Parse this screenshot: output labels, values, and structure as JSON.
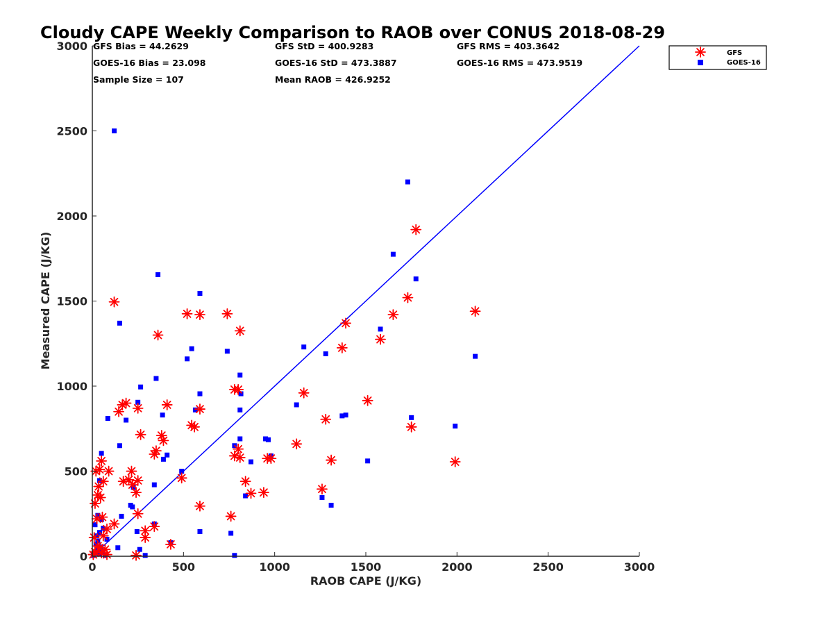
{
  "chart_data": {
    "type": "scatter",
    "title": "Cloudy CAPE Weekly Comparison to RAOB over CONUS 2018-08-29",
    "xlabel": "RAOB CAPE (J/KG)",
    "ylabel": "Measured CAPE (J/KG)",
    "xlim": [
      0,
      3000
    ],
    "ylim": [
      0,
      3000
    ],
    "xticks": [
      "0",
      "500",
      "1000",
      "1500",
      "2000",
      "2500",
      "3000"
    ],
    "yticks": [
      "0",
      "500",
      "1000",
      "1500",
      "2000",
      "2500",
      "3000"
    ],
    "grid": false,
    "legend_position": "top-right",
    "stats": {
      "gfs_bias": "GFS Bias = 44.2629",
      "gfs_std": "GFS StD = 400.9283",
      "gfs_rms": "GFS RMS = 403.3642",
      "goes_bias": "GOES-16 Bias = 23.098",
      "goes_std": "GOES-16 StD = 473.3887",
      "goes_rms": "GOES-16 RMS = 473.9519",
      "sample_size": "Sample Size = 107",
      "mean_raob": "Mean RAOB = 426.9252"
    },
    "reference_line": {
      "x": [
        0,
        3000
      ],
      "y": [
        0,
        3000
      ],
      "color": "#0000ff"
    },
    "series": [
      {
        "name": "GFS",
        "marker": "asterisk",
        "color": "#ff0000",
        "points": [
          [
            120,
            1495
          ],
          [
            165,
            890
          ],
          [
            145,
            850
          ],
          [
            185,
            900
          ],
          [
            250,
            870
          ],
          [
            360,
            1300
          ],
          [
            410,
            890
          ],
          [
            520,
            1425
          ],
          [
            590,
            1420
          ],
          [
            740,
            1425
          ],
          [
            810,
            1325
          ],
          [
            800,
            980
          ],
          [
            780,
            980
          ],
          [
            545,
            770
          ],
          [
            560,
            760
          ],
          [
            590,
            865
          ],
          [
            380,
            710
          ],
          [
            390,
            680
          ],
          [
            265,
            715
          ],
          [
            340,
            600
          ],
          [
            350,
            620
          ],
          [
            490,
            460
          ],
          [
            430,
            70
          ],
          [
            590,
            295
          ],
          [
            760,
            235
          ],
          [
            780,
            590
          ],
          [
            800,
            630
          ],
          [
            810,
            580
          ],
          [
            840,
            440
          ],
          [
            870,
            370
          ],
          [
            940,
            375
          ],
          [
            960,
            575
          ],
          [
            980,
            575
          ],
          [
            1160,
            960
          ],
          [
            1120,
            660
          ],
          [
            1280,
            805
          ],
          [
            1310,
            565
          ],
          [
            1260,
            395
          ],
          [
            1370,
            1225
          ],
          [
            1390,
            1370
          ],
          [
            1510,
            915
          ],
          [
            1580,
            1275
          ],
          [
            1650,
            1420
          ],
          [
            1730,
            1520
          ],
          [
            1775,
            1920
          ],
          [
            1750,
            760
          ],
          [
            1990,
            555
          ],
          [
            2100,
            1440
          ],
          [
            20,
            500
          ],
          [
            40,
            510
          ],
          [
            50,
            560
          ],
          [
            90,
            500
          ],
          [
            60,
            440
          ],
          [
            30,
            360
          ],
          [
            45,
            345
          ],
          [
            55,
            230
          ],
          [
            25,
            220
          ],
          [
            15,
            310
          ],
          [
            35,
            410
          ],
          [
            60,
            120
          ],
          [
            80,
            160
          ],
          [
            120,
            190
          ],
          [
            170,
            440
          ],
          [
            200,
            450
          ],
          [
            215,
            500
          ],
          [
            250,
            445
          ],
          [
            240,
            375
          ],
          [
            250,
            250
          ],
          [
            290,
            150
          ],
          [
            290,
            110
          ],
          [
            340,
            175
          ],
          [
            30,
            60
          ],
          [
            15,
            25
          ],
          [
            5,
            10
          ],
          [
            50,
            20
          ],
          [
            70,
            40
          ],
          [
            80,
            10
          ],
          [
            10,
            110
          ],
          [
            40,
            50
          ],
          [
            240,
            5
          ],
          [
            220,
            420
          ]
        ]
      },
      {
        "name": "GOES-16",
        "marker": "square",
        "color": "#0000ff",
        "points": [
          [
            120,
            2500
          ],
          [
            1730,
            2200
          ],
          [
            1650,
            1775
          ],
          [
            1775,
            1630
          ],
          [
            360,
            1655
          ],
          [
            590,
            1545
          ],
          [
            150,
            1370
          ],
          [
            545,
            1220
          ],
          [
            520,
            1160
          ],
          [
            740,
            1205
          ],
          [
            810,
            1065
          ],
          [
            815,
            955
          ],
          [
            590,
            955
          ],
          [
            350,
            1045
          ],
          [
            265,
            995
          ],
          [
            250,
            905
          ],
          [
            385,
            830
          ],
          [
            565,
            860
          ],
          [
            810,
            860
          ],
          [
            1160,
            1230
          ],
          [
            1280,
            1190
          ],
          [
            1120,
            890
          ],
          [
            1370,
            825
          ],
          [
            1390,
            830
          ],
          [
            1580,
            1335
          ],
          [
            2100,
            1175
          ],
          [
            1750,
            815
          ],
          [
            1990,
            765
          ],
          [
            1510,
            560
          ],
          [
            1260,
            345
          ],
          [
            1310,
            300
          ],
          [
            950,
            690
          ],
          [
            965,
            685
          ],
          [
            980,
            590
          ],
          [
            870,
            555
          ],
          [
            840,
            355
          ],
          [
            810,
            690
          ],
          [
            780,
            650
          ],
          [
            760,
            135
          ],
          [
            780,
            5
          ],
          [
            590,
            145
          ],
          [
            490,
            500
          ],
          [
            410,
            595
          ],
          [
            390,
            570
          ],
          [
            340,
            420
          ],
          [
            340,
            190
          ],
          [
            430,
            80
          ],
          [
            210,
            300
          ],
          [
            220,
            290
          ],
          [
            225,
            405
          ],
          [
            245,
            145
          ],
          [
            260,
            40
          ],
          [
            290,
            5
          ],
          [
            160,
            235
          ],
          [
            150,
            650
          ],
          [
            185,
            800
          ],
          [
            85,
            810
          ],
          [
            50,
            605
          ],
          [
            40,
            445
          ],
          [
            30,
            240
          ],
          [
            60,
            165
          ],
          [
            25,
            120
          ],
          [
            140,
            50
          ],
          [
            80,
            100
          ],
          [
            20,
            70
          ],
          [
            10,
            20
          ],
          [
            5,
            5
          ],
          [
            45,
            55
          ],
          [
            60,
            30
          ],
          [
            35,
            15
          ],
          [
            15,
            185
          ],
          [
            50,
            215
          ],
          [
            40,
            140
          ],
          [
            30,
            90
          ],
          [
            70,
            5
          ],
          [
            55,
            25
          ],
          [
            25,
            35
          ]
        ]
      }
    ]
  }
}
